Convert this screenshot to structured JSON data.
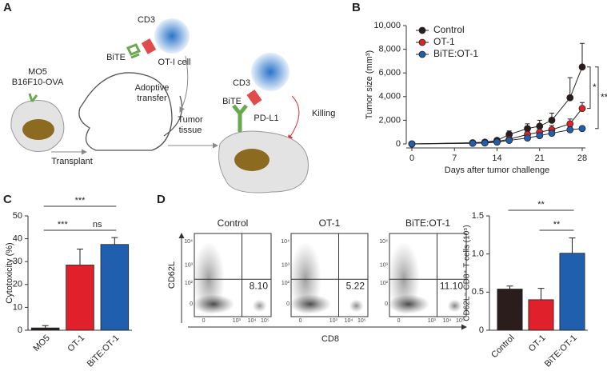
{
  "panels": [
    "A",
    "B",
    "C",
    "D"
  ],
  "diagram": {
    "mo5": "MO5",
    "b16": "B16F10-OVA",
    "transplant": "Transplant",
    "cd3_a": "CD3",
    "bite_a": "BiTE",
    "otcell": "OT-I cell",
    "adoptive": "Adoptive",
    "transfer": "transfer",
    "tumor": "Tumor",
    "tissue": "tissue",
    "cd3_b": "CD3",
    "bite_b": "BiTE",
    "pdl1": "PD-L1",
    "killing": "Killing"
  },
  "chart_data": [
    {
      "type": "line",
      "xlabel": "Days after tumor challenge",
      "ylabel": "Tumor size (mm³)",
      "x": [
        0,
        10,
        12,
        14,
        16,
        19,
        21,
        23,
        26,
        28
      ],
      "xlim": [
        0,
        28
      ],
      "xticks": [
        0,
        7,
        14,
        21,
        28
      ],
      "ylim": [
        0,
        10000
      ],
      "yticks": [
        0,
        {
          "value": 2000,
          "label": "2,000"
        },
        {
          "value": 4000,
          "label": "4,000"
        },
        {
          "value": 6000,
          "label": "6,000"
        },
        {
          "value": 8000,
          "label": "8,000"
        },
        {
          "value": 10000,
          "label": "10,000"
        }
      ],
      "legend": "upper left",
      "series": [
        {
          "name": "Control",
          "color": "#2b1d1b",
          "values": [
            0,
            100,
            150,
            300,
            800,
            1300,
            1500,
            2000,
            3900,
            6500
          ],
          "errors": [
            0,
            50,
            60,
            120,
            300,
            400,
            500,
            600,
            1700,
            2000
          ]
        },
        {
          "name": "OT-1",
          "color": "#e0202a",
          "values": [
            0,
            80,
            100,
            200,
            400,
            800,
            1000,
            1200,
            1700,
            3000
          ],
          "errors": [
            0,
            40,
            50,
            80,
            150,
            250,
            300,
            350,
            400,
            500
          ]
        },
        {
          "name": "BiTE:OT-1",
          "color": "#1f5fae",
          "values": [
            0,
            50,
            80,
            150,
            300,
            500,
            700,
            900,
            1200,
            1300
          ],
          "errors": [
            0,
            30,
            40,
            60,
            100,
            150,
            200,
            250,
            250,
            200
          ]
        }
      ],
      "annotations": [
        "*",
        "**"
      ]
    },
    {
      "type": "bar",
      "ylabel": "Cytotoxicity (%)",
      "categories": [
        "MO5",
        "OT-1",
        "BiTE:OT-1"
      ],
      "values": [
        1,
        28.5,
        37.5
      ],
      "errors": [
        1,
        7,
        3
      ],
      "colors": [
        "#2b1d1b",
        "#e0202a",
        "#1f5fae"
      ],
      "ylim": [
        0,
        50
      ],
      "yticks": [
        0,
        10,
        20,
        30,
        40,
        50
      ],
      "annotations": [
        "***",
        "***",
        "ns"
      ]
    },
    {
      "type": "flow",
      "xlabel": "CD8",
      "ylabel": "CD62L",
      "xtick_labels": [
        "0",
        "10³",
        "10⁴",
        "10⁵"
      ],
      "ytick_labels": [
        "0",
        "10²",
        "10³",
        "10⁴"
      ],
      "plots": [
        "Control",
        "OT-1",
        "BiTE:OT-1"
      ],
      "values": [
        8.1,
        5.22,
        11.1
      ],
      "value_labels": [
        "8.10",
        "5.22",
        "11.10"
      ]
    },
    {
      "type": "bar",
      "ylabel": "CD62L⁻ CD8⁺ T cells (10⁵)",
      "categories": [
        "Control",
        "OT-1",
        "BiTE:OT-1"
      ],
      "values": [
        0.54,
        0.4,
        1.01
      ],
      "errors": [
        0.04,
        0.15,
        0.2
      ],
      "colors": [
        "#2b1d1b",
        "#e0202a",
        "#1f5fae"
      ],
      "ylim": [
        0,
        1.5
      ],
      "yticks": [
        0,
        {
          "value": 0.5,
          "label": "0.5"
        },
        {
          "value": 1,
          "label": "1.0"
        },
        {
          "value": 1.5,
          "label": "1.5"
        }
      ],
      "annotations": [
        "**",
        "**"
      ]
    }
  ]
}
